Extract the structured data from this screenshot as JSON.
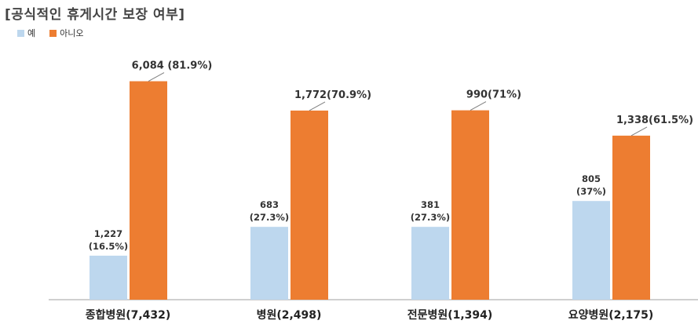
{
  "chart_data": {
    "type": "bar",
    "title": "[공식적인 휴게시간 보장 여부]",
    "categories": [
      "종합병원(7,432)",
      "병원(2,498)",
      "전문병원(1,394)",
      "요양병원(2,175)"
    ],
    "series": [
      {
        "name": "예",
        "color": "#BDD7EE",
        "values": [
          1227,
          683,
          381,
          805
        ],
        "labels": [
          [
            "1,227",
            "(16.5%)"
          ],
          [
            "683",
            "(27.3%)"
          ],
          [
            "381",
            "(27.3%)"
          ],
          [
            "805",
            "(37%)"
          ]
        ]
      },
      {
        "name": "아니오",
        "color": "#ED7D31",
        "values": [
          6084,
          1772,
          990,
          1338
        ],
        "labels": [
          "6,084 (81.9%)",
          "1,772(70.9%)",
          "990(71%)",
          "1,338(61.5%)"
        ],
        "shares": [
          81.9,
          70.9,
          71,
          61.5
        ],
        "yes_shares": [
          16.5,
          27.3,
          27.3,
          37
        ]
      }
    ],
    "legend_position": "top-left",
    "grid": false
  }
}
